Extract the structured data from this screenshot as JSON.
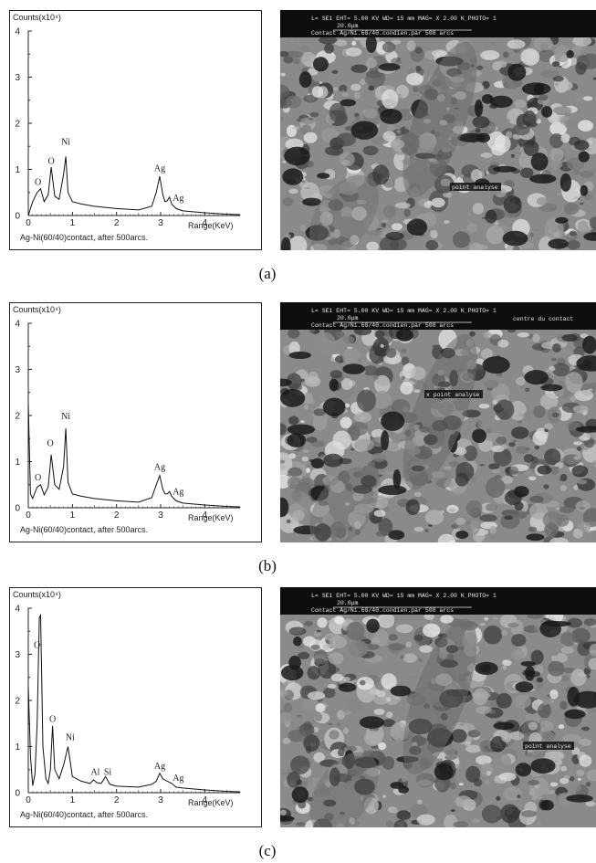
{
  "captions": [
    "(a)",
    "(b)",
    "(c)"
  ],
  "chart_data": [
    {
      "type": "line",
      "ylabel": "Counts(x10⁴)",
      "xlabel": "Range(KeV)",
      "note": "Ag-Ni(60/40)contact, after 500arcs.",
      "xlim": [
        0,
        4.8
      ],
      "ylim": [
        0,
        4
      ],
      "xticks": [
        "0",
        "1",
        "2",
        "3",
        "4"
      ],
      "yticks": [
        "0",
        "1",
        "2",
        "3",
        "4"
      ],
      "series": [
        {
          "x": [
            0.0,
            0.1,
            0.2,
            0.28,
            0.36,
            0.45,
            0.52,
            0.6,
            0.7,
            0.8,
            0.85,
            0.9,
            1.0,
            1.2,
            1.5,
            2.0,
            2.5,
            2.8,
            2.9,
            2.98,
            3.05,
            3.1,
            3.15,
            3.2,
            3.25,
            3.35,
            3.5,
            4.0,
            4.5,
            4.8
          ],
          "y": [
            0.0,
            0.3,
            0.5,
            0.58,
            0.3,
            0.45,
            1.05,
            0.42,
            0.35,
            0.9,
            1.28,
            0.5,
            0.3,
            0.25,
            0.2,
            0.15,
            0.12,
            0.2,
            0.5,
            0.85,
            0.45,
            0.3,
            0.32,
            0.4,
            0.25,
            0.15,
            0.1,
            0.06,
            0.03,
            0.02
          ]
        }
      ],
      "annotations": [
        {
          "text": "O",
          "x": 0.22,
          "y": 0.62
        },
        {
          "text": "O",
          "x": 0.52,
          "y": 1.08
        },
        {
          "text": "Ni",
          "x": 0.85,
          "y": 1.5
        },
        {
          "text": "Ag",
          "x": 2.98,
          "y": 0.92
        },
        {
          "text": "Ag",
          "x": 3.4,
          "y": 0.28
        }
      ]
    },
    {
      "type": "line",
      "ylabel": "Counts(x10⁴)",
      "xlabel": "Range(KeV)",
      "note": "Ag-Ni(60/40)contact, after 500arcs.",
      "xlim": [
        0,
        4.8
      ],
      "ylim": [
        0,
        4
      ],
      "xticks": [
        "0",
        "1",
        "2",
        "3",
        "4"
      ],
      "yticks": [
        "0",
        "1",
        "2",
        "3",
        "4"
      ],
      "series": [
        {
          "x": [
            0.0,
            0.05,
            0.1,
            0.2,
            0.28,
            0.36,
            0.45,
            0.52,
            0.6,
            0.7,
            0.8,
            0.85,
            0.9,
            1.0,
            1.2,
            1.5,
            2.0,
            2.5,
            2.8,
            2.9,
            2.98,
            3.05,
            3.1,
            3.15,
            3.2,
            3.25,
            3.35,
            3.5,
            4.0,
            4.5,
            4.8
          ],
          "y": [
            2.25,
            0.3,
            0.2,
            0.45,
            0.5,
            0.28,
            0.45,
            1.15,
            0.5,
            0.4,
            0.9,
            1.72,
            0.55,
            0.3,
            0.25,
            0.2,
            0.15,
            0.12,
            0.22,
            0.5,
            0.7,
            0.4,
            0.3,
            0.3,
            0.35,
            0.25,
            0.15,
            0.1,
            0.06,
            0.03,
            0.02
          ]
        }
      ],
      "annotations": [
        {
          "text": "O",
          "x": 0.22,
          "y": 0.55
        },
        {
          "text": "O",
          "x": 0.5,
          "y": 1.3
        },
        {
          "text": "Ni",
          "x": 0.85,
          "y": 1.88
        },
        {
          "text": "Ag",
          "x": 2.98,
          "y": 0.78
        },
        {
          "text": "Ag",
          "x": 3.4,
          "y": 0.25
        }
      ]
    },
    {
      "type": "line",
      "ylabel": "Counts(x10⁴)",
      "xlabel": "Range(KeV)",
      "note": "Ag-Ni(60/40)contact, after 500arcs.",
      "xlim": [
        0,
        4.8
      ],
      "ylim": [
        0,
        4
      ],
      "xticks": [
        "0",
        "1",
        "2",
        "3",
        "4"
      ],
      "yticks": [
        "0",
        "1",
        "2",
        "3",
        "4"
      ],
      "series": [
        {
          "x": [
            0.0,
            0.05,
            0.1,
            0.15,
            0.2,
            0.25,
            0.28,
            0.33,
            0.4,
            0.45,
            0.5,
            0.55,
            0.6,
            0.7,
            0.8,
            0.9,
            1.0,
            1.2,
            1.4,
            1.48,
            1.55,
            1.65,
            1.75,
            1.85,
            2.0,
            2.5,
            2.8,
            2.9,
            2.98,
            3.05,
            3.15,
            3.25,
            3.35,
            3.5,
            4.0,
            4.5,
            4.8
          ],
          "y": [
            2.3,
            0.8,
            0.15,
            0.4,
            1.5,
            3.8,
            3.85,
            1.0,
            0.3,
            0.2,
            0.5,
            1.45,
            0.5,
            0.3,
            0.6,
            1.0,
            0.35,
            0.25,
            0.2,
            0.28,
            0.22,
            0.2,
            0.35,
            0.18,
            0.14,
            0.12,
            0.18,
            0.25,
            0.42,
            0.3,
            0.25,
            0.2,
            0.12,
            0.1,
            0.06,
            0.03,
            0.02
          ]
        }
      ],
      "annotations": [
        {
          "text": "O",
          "x": 0.2,
          "y": 3.1
        },
        {
          "text": "O",
          "x": 0.55,
          "y": 1.5
        },
        {
          "text": "Ni",
          "x": 0.95,
          "y": 1.1
        },
        {
          "text": "Al",
          "x": 1.52,
          "y": 0.35
        },
        {
          "text": "Si",
          "x": 1.8,
          "y": 0.35
        },
        {
          "text": "Ag",
          "x": 2.98,
          "y": 0.48
        },
        {
          "text": "Ag",
          "x": 3.4,
          "y": 0.22
        }
      ]
    }
  ],
  "sem_images": [
    {
      "hud_line1": "L= SE1     EHT= 5.00 KV  WD= 15   mm    MAG= X 2.00 K PHOTO= 1",
      "hud_line2": "Contact Ag/Ni.60/40.condien.par 500 arcs",
      "scale_label": "20.0µm",
      "annotation": "point analyse",
      "extra_label": ""
    },
    {
      "hud_line1": "L= SE1     EHT= 5.00 KV  WD= 15   mm    MAG= X 2.00 K PHOTO= 1",
      "hud_line2": "Contact Ag/Ni.60/40.condien.par 500 arcs",
      "scale_label": "20.0µm",
      "annotation": "x point analyse",
      "extra_label": "centre du contact"
    },
    {
      "hud_line1": "L= SE1     EHT= 5.00 KV  WD= 15   mm    MAG= X 2.00 K PHOTO= 1",
      "hud_line2": "Contact Ag/Ni.60/40.condien.par 500 arcs",
      "scale_label": "20.0µm",
      "annotation": "point analyse",
      "extra_label": ""
    }
  ]
}
